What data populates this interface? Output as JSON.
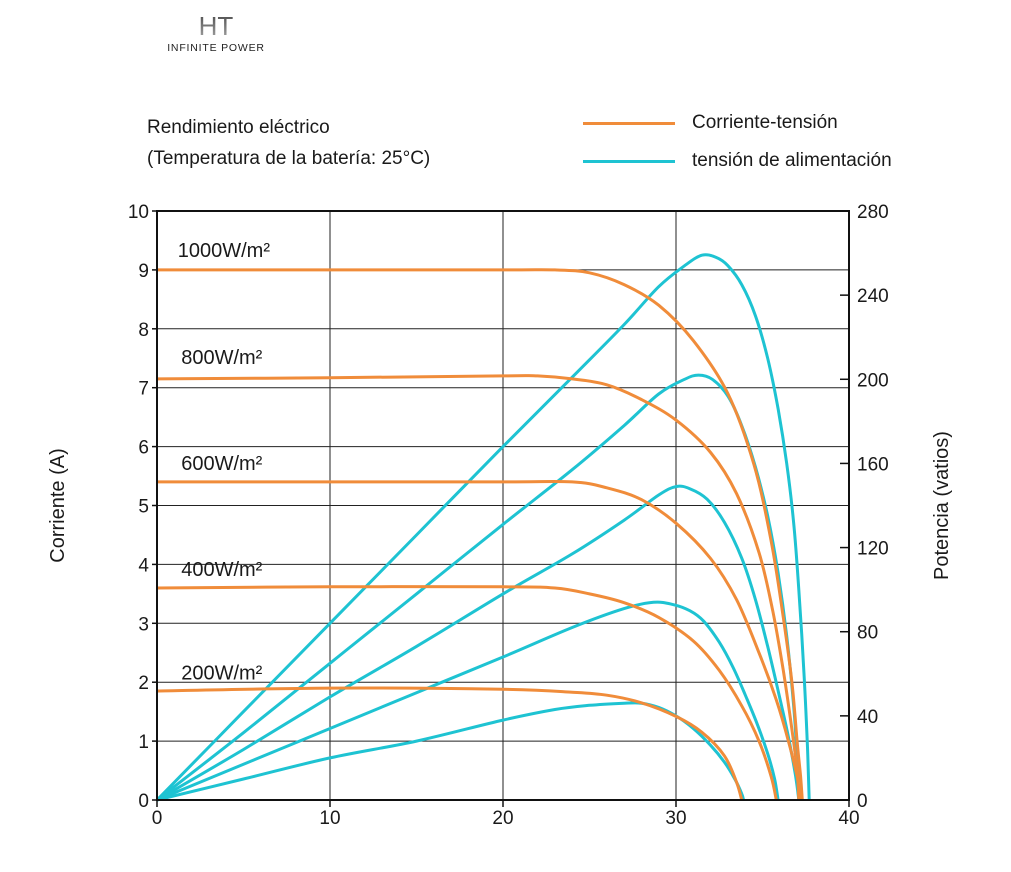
{
  "brand": {
    "logo_text": "HT",
    "tagline": "INFINITE POWER"
  },
  "chart_data": {
    "type": "line",
    "title": "Rendimiento eléctrico",
    "subtitle": "(Temperatura de la batería: 25°C)",
    "xlabel": "",
    "ylabel": "Corriente (A)",
    "y2label": "Potencia (vatios)",
    "xlim": [
      0,
      40
    ],
    "ylim": [
      0,
      10
    ],
    "y2lim": [
      0,
      280
    ],
    "x_ticks": [
      0,
      10,
      20,
      30,
      40
    ],
    "y_ticks": [
      0,
      1,
      2,
      3,
      4,
      5,
      6,
      7,
      8,
      9,
      10
    ],
    "y2_ticks": [
      0,
      40,
      80,
      120,
      160,
      200,
      240,
      280
    ],
    "grid": true,
    "legend_position": "top-right",
    "legend": [
      {
        "label": "Corriente-tensión",
        "color": "#f08c3a"
      },
      {
        "label": "tensión de alimentación",
        "color": "#1ec3d2"
      }
    ],
    "current_series": [
      {
        "irradiance_label": "1000W/m²",
        "label_at": [
          1.2,
          9.22
        ],
        "points": [
          [
            0,
            9
          ],
          [
            10,
            9
          ],
          [
            20,
            9
          ],
          [
            23,
            9
          ],
          [
            25,
            8.95
          ],
          [
            27,
            8.75
          ],
          [
            29,
            8.4
          ],
          [
            31,
            7.8
          ],
          [
            33,
            6.9
          ],
          [
            34.5,
            5.7
          ],
          [
            35.5,
            4.4
          ],
          [
            36.2,
            3.1
          ],
          [
            36.7,
            2.0
          ],
          [
            37.0,
            1.0
          ],
          [
            37.2,
            0.4
          ],
          [
            37.3,
            0
          ]
        ]
      },
      {
        "irradiance_label": "800W/m²",
        "label_at": [
          1.4,
          7.4
        ],
        "points": [
          [
            0,
            7.15
          ],
          [
            10,
            7.17
          ],
          [
            20,
            7.2
          ],
          [
            22,
            7.2
          ],
          [
            24,
            7.15
          ],
          [
            26,
            7.05
          ],
          [
            28,
            6.8
          ],
          [
            30,
            6.45
          ],
          [
            32,
            5.9
          ],
          [
            33.5,
            5.2
          ],
          [
            34.8,
            4.2
          ],
          [
            35.6,
            3.2
          ],
          [
            36.2,
            2.2
          ],
          [
            36.7,
            1.2
          ],
          [
            37.0,
            0.5
          ],
          [
            37.1,
            0
          ]
        ]
      },
      {
        "irradiance_label": "600W/m²",
        "label_at": [
          1.4,
          5.6
        ],
        "points": [
          [
            0,
            5.4
          ],
          [
            10,
            5.4
          ],
          [
            20,
            5.4
          ],
          [
            24,
            5.4
          ],
          [
            26,
            5.3
          ],
          [
            28,
            5.1
          ],
          [
            30,
            4.7
          ],
          [
            32,
            4.1
          ],
          [
            33.5,
            3.4
          ],
          [
            34.8,
            2.5
          ],
          [
            35.8,
            1.7
          ],
          [
            36.5,
            1.0
          ],
          [
            37.0,
            0.4
          ],
          [
            37.2,
            0
          ]
        ]
      },
      {
        "irradiance_label": "400W/m²",
        "label_at": [
          1.4,
          3.8
        ],
        "points": [
          [
            0,
            3.6
          ],
          [
            10,
            3.62
          ],
          [
            20,
            3.62
          ],
          [
            23,
            3.6
          ],
          [
            25,
            3.5
          ],
          [
            27,
            3.35
          ],
          [
            29,
            3.1
          ],
          [
            31,
            2.7
          ],
          [
            32.5,
            2.2
          ],
          [
            33.8,
            1.6
          ],
          [
            34.8,
            1.0
          ],
          [
            35.5,
            0.4
          ],
          [
            35.8,
            0
          ]
        ]
      },
      {
        "irradiance_label": "200W/m²",
        "label_at": [
          1.4,
          2.05
        ],
        "points": [
          [
            0,
            1.85
          ],
          [
            10,
            1.9
          ],
          [
            20,
            1.88
          ],
          [
            24,
            1.83
          ],
          [
            26,
            1.78
          ],
          [
            28,
            1.65
          ],
          [
            30,
            1.42
          ],
          [
            31.5,
            1.15
          ],
          [
            32.8,
            0.75
          ],
          [
            33.5,
            0.3
          ],
          [
            33.8,
            0
          ]
        ]
      }
    ],
    "power_series": [
      {
        "points": [
          [
            0,
            0
          ],
          [
            5,
            42
          ],
          [
            10,
            84
          ],
          [
            15,
            126
          ],
          [
            20,
            168
          ],
          [
            24,
            201
          ],
          [
            27,
            226
          ],
          [
            29,
            244
          ],
          [
            30.5,
            254
          ],
          [
            31.5,
            259
          ],
          [
            32.3,
            258
          ],
          [
            33,
            254
          ],
          [
            33.8,
            245
          ],
          [
            34.6,
            230
          ],
          [
            35.3,
            210
          ],
          [
            35.9,
            186
          ],
          [
            36.4,
            160
          ],
          [
            36.8,
            132
          ],
          [
            37.1,
            100
          ],
          [
            37.4,
            60
          ],
          [
            37.6,
            25
          ],
          [
            37.7,
            0
          ]
        ]
      },
      {
        "points": [
          [
            0,
            0
          ],
          [
            5,
            32
          ],
          [
            10,
            65
          ],
          [
            15,
            98
          ],
          [
            20,
            131
          ],
          [
            24,
            157
          ],
          [
            27,
            178
          ],
          [
            29,
            193
          ],
          [
            30.5,
            200
          ],
          [
            31.3,
            202
          ],
          [
            32.1,
            200
          ],
          [
            33,
            192
          ],
          [
            33.8,
            178
          ],
          [
            34.6,
            158
          ],
          [
            35.3,
            135
          ],
          [
            35.9,
            108
          ],
          [
            36.4,
            78
          ],
          [
            36.8,
            45
          ],
          [
            37.0,
            20
          ],
          [
            37.1,
            0
          ]
        ]
      },
      {
        "points": [
          [
            0,
            0
          ],
          [
            5,
            24
          ],
          [
            10,
            49
          ],
          [
            15,
            73
          ],
          [
            20,
            98
          ],
          [
            24,
            117
          ],
          [
            27,
            133
          ],
          [
            29,
            145
          ],
          [
            30,
            149
          ],
          [
            30.8,
            148
          ],
          [
            31.8,
            143
          ],
          [
            32.8,
            132
          ],
          [
            33.8,
            115
          ],
          [
            34.6,
            95
          ],
          [
            35.3,
            73
          ],
          [
            35.9,
            52
          ],
          [
            36.5,
            30
          ],
          [
            36.9,
            12
          ],
          [
            37.1,
            0
          ]
        ]
      },
      {
        "points": [
          [
            0,
            0
          ],
          [
            5,
            17
          ],
          [
            10,
            34
          ],
          [
            15,
            51
          ],
          [
            20,
            68
          ],
          [
            24,
            82
          ],
          [
            27,
            91
          ],
          [
            28.7,
            94
          ],
          [
            29.8,
            93
          ],
          [
            30.8,
            90
          ],
          [
            31.6,
            85
          ],
          [
            32.5,
            75
          ],
          [
            33.3,
            63
          ],
          [
            34,
            50
          ],
          [
            34.7,
            36
          ],
          [
            35.3,
            22
          ],
          [
            35.7,
            10
          ],
          [
            35.9,
            0
          ]
        ]
      },
      {
        "points": [
          [
            0,
            0
          ],
          [
            5,
            10
          ],
          [
            10,
            20
          ],
          [
            15,
            28
          ],
          [
            20,
            38
          ],
          [
            23,
            43
          ],
          [
            25,
            45
          ],
          [
            27,
            46
          ],
          [
            28,
            46
          ],
          [
            29,
            44
          ],
          [
            30,
            40
          ],
          [
            31,
            34
          ],
          [
            32,
            26
          ],
          [
            32.8,
            18
          ],
          [
            33.4,
            10
          ],
          [
            33.8,
            3
          ],
          [
            33.9,
            0
          ]
        ]
      }
    ]
  }
}
